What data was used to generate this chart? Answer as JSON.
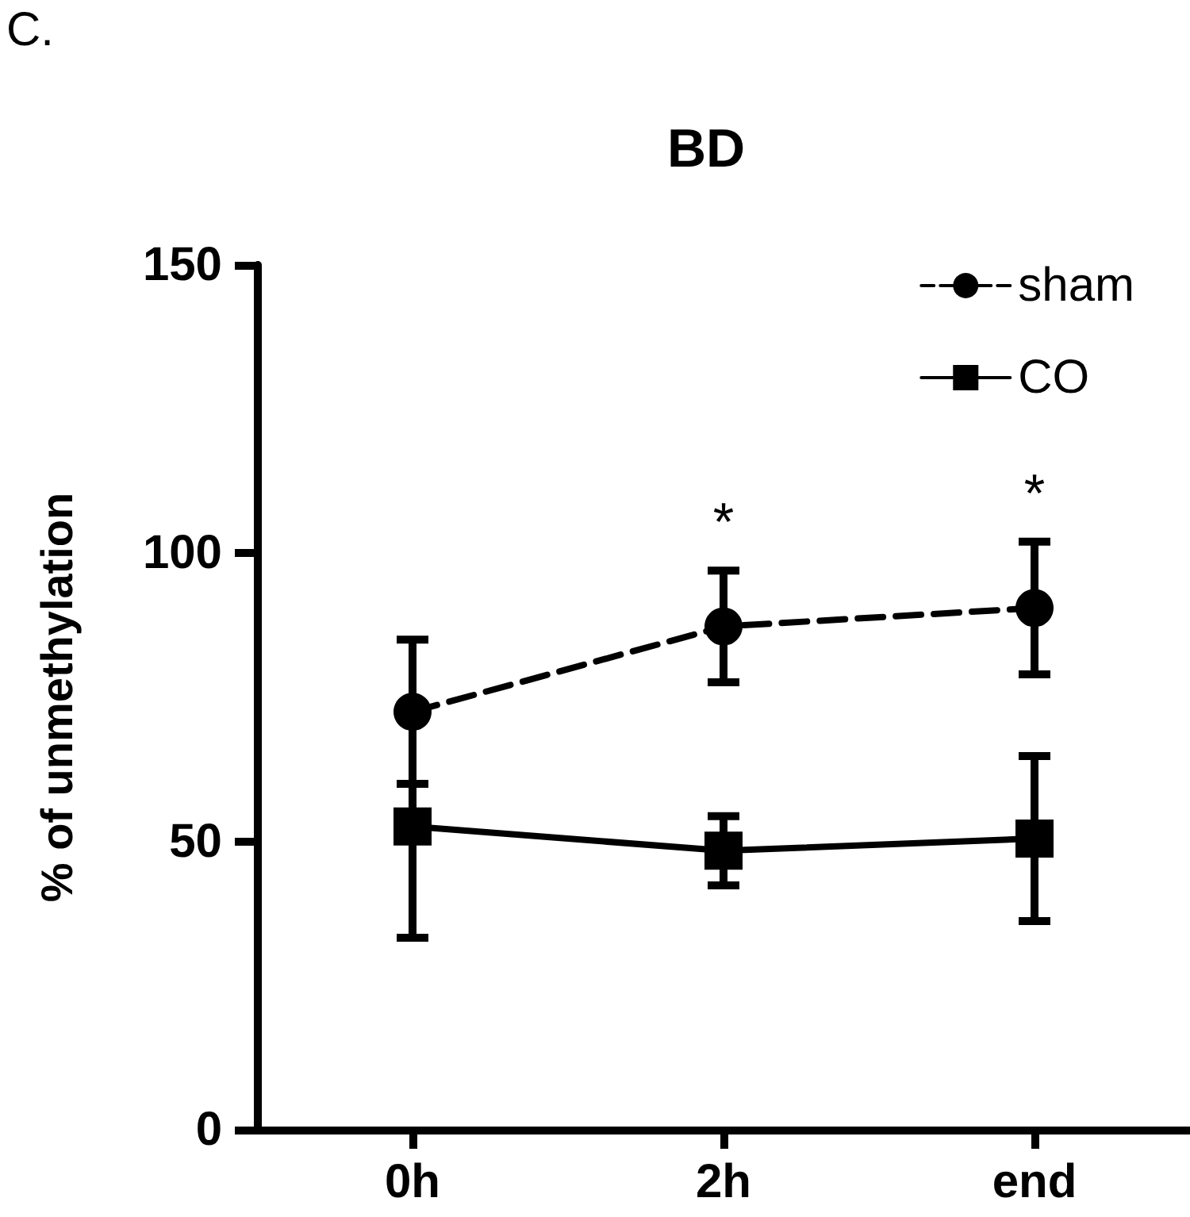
{
  "chart_data": {
    "type": "line",
    "title": "BD",
    "ylabel": "% of unmethylation",
    "categories": [
      "0h",
      "2h",
      "end"
    ],
    "ylim": [
      0,
      150
    ],
    "yticks": [
      0,
      50,
      100,
      150
    ],
    "grid": false,
    "legend": "top right",
    "series": [
      {
        "name": "sham",
        "color": "#000000",
        "marker": "circle",
        "line_style": "dashed",
        "values": [
          72.5,
          87.3,
          90.5
        ],
        "errors": [
          12.5,
          9.7,
          11.5
        ]
      },
      {
        "name": "CO",
        "color": "#000000",
        "marker": "square",
        "line_style": "solid",
        "values": [
          52.6,
          48.4,
          50.5
        ],
        "errors": [
          19.3,
          6,
          14.3
        ]
      }
    ],
    "annotations": [
      "C.",
      "*",
      "*"
    ]
  }
}
